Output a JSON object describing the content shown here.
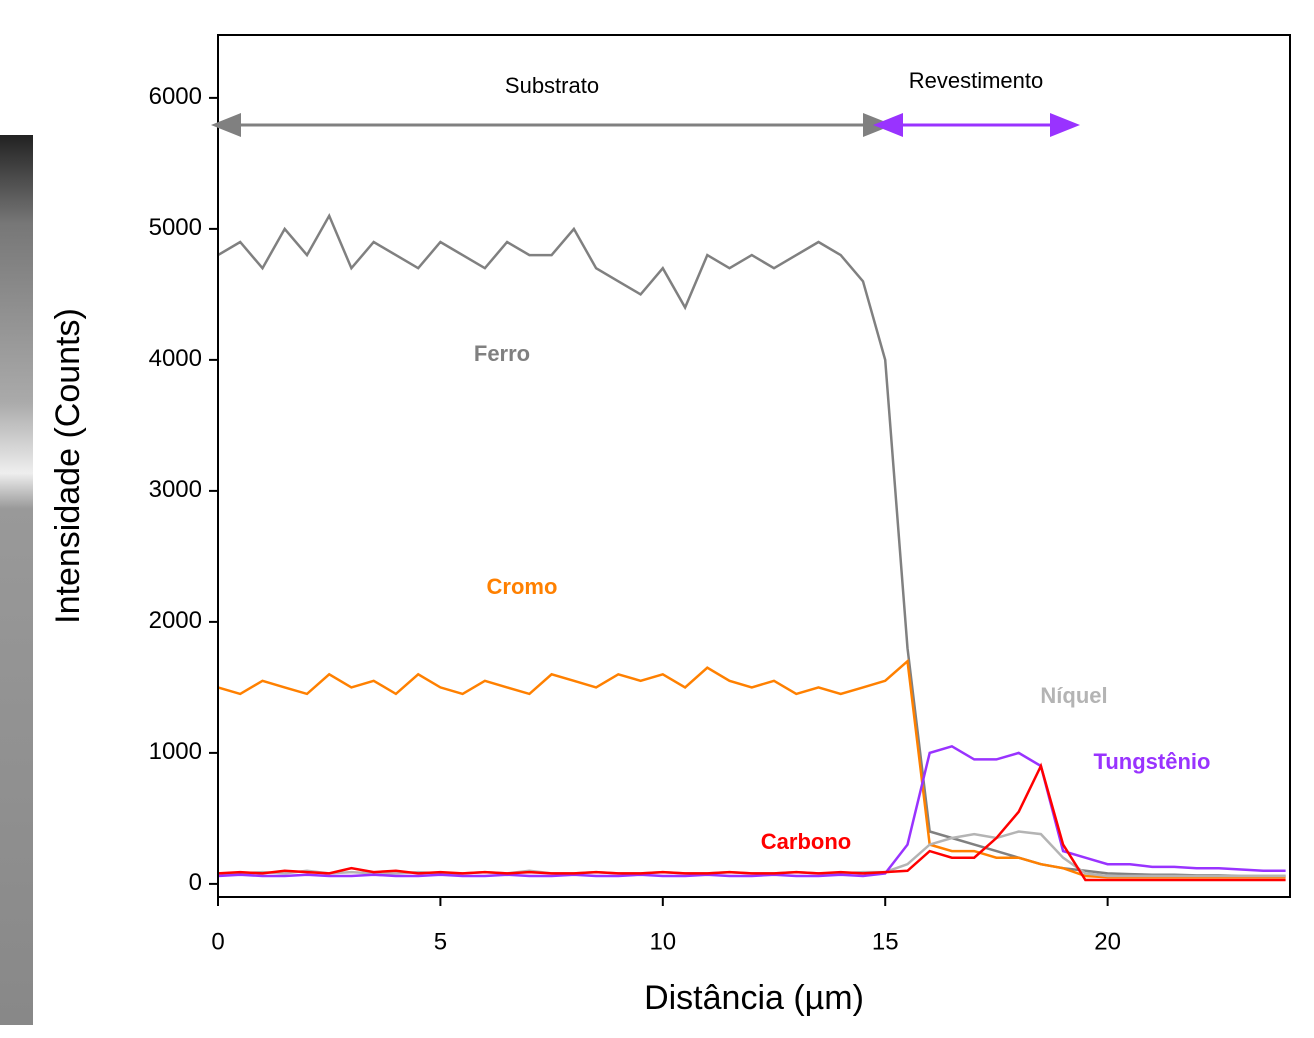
{
  "chart_data": {
    "type": "line",
    "x_label": "Distância (µm)",
    "y_label": "Intensidade (Counts)",
    "annotations": [
      "Substrato",
      "Revestimento"
    ],
    "x": [
      0,
      0.5,
      1,
      1.5,
      2,
      2.5,
      3,
      3.5,
      4,
      4.5,
      5,
      5.5,
      6,
      6.5,
      7,
      7.5,
      8,
      8.5,
      9,
      9.5,
      10,
      10.5,
      11,
      11.5,
      12,
      12.5,
      13,
      13.5,
      14,
      14.5,
      15,
      15.5,
      16,
      16.5,
      17,
      17.5,
      18,
      18.5,
      19,
      19.5,
      20,
      20.5,
      21,
      21.5,
      22,
      22.5,
      23,
      23.5,
      24
    ],
    "series": [
      {
        "name": "Ferro",
        "color": "#808080",
        "values": [
          4800,
          4900,
          4700,
          5000,
          4800,
          5100,
          4700,
          4900,
          4800,
          4700,
          4900,
          4800,
          4700,
          4900,
          4800,
          4800,
          5000,
          4700,
          4600,
          4500,
          4700,
          4400,
          4800,
          4700,
          4800,
          4700,
          4800,
          4900,
          4800,
          4600,
          4000,
          1800,
          400,
          350,
          300,
          250,
          200,
          150,
          120,
          100,
          80,
          75,
          70,
          70,
          65,
          65,
          60,
          60,
          60
        ]
      },
      {
        "name": "Cromo",
        "color": "#ff8000",
        "values": [
          1500,
          1450,
          1550,
          1500,
          1450,
          1600,
          1500,
          1550,
          1450,
          1600,
          1500,
          1450,
          1550,
          1500,
          1450,
          1600,
          1550,
          1500,
          1600,
          1550,
          1600,
          1500,
          1650,
          1550,
          1500,
          1550,
          1450,
          1500,
          1450,
          1500,
          1550,
          1700,
          300,
          250,
          250,
          200,
          200,
          150,
          120,
          60,
          50,
          50,
          50,
          50,
          50,
          50,
          50,
          50,
          50
        ]
      },
      {
        "name": "Níquel",
        "color": "#b4b4b4",
        "values": [
          80,
          80,
          90,
          80,
          100,
          80,
          90,
          80,
          80,
          90,
          80,
          80,
          90,
          80,
          100,
          80,
          80,
          90,
          80,
          80,
          90,
          80,
          80,
          90,
          80,
          80,
          90,
          80,
          80,
          90,
          90,
          150,
          300,
          350,
          380,
          350,
          400,
          380,
          200,
          80,
          60,
          60,
          60,
          60,
          60,
          60,
          60,
          60,
          60
        ]
      },
      {
        "name": "Tungstênio",
        "color": "#9933ff",
        "values": [
          60,
          70,
          60,
          60,
          70,
          60,
          60,
          70,
          60,
          60,
          70,
          60,
          60,
          70,
          60,
          60,
          70,
          60,
          60,
          70,
          60,
          60,
          70,
          60,
          60,
          70,
          60,
          60,
          70,
          60,
          80,
          300,
          1000,
          1050,
          950,
          950,
          1000,
          900,
          250,
          200,
          150,
          150,
          130,
          130,
          120,
          120,
          110,
          100,
          100
        ]
      },
      {
        "name": "Carbono",
        "color": "#ff0000",
        "values": [
          80,
          90,
          80,
          100,
          90,
          80,
          120,
          90,
          100,
          80,
          90,
          80,
          90,
          80,
          90,
          80,
          80,
          90,
          80,
          80,
          90,
          80,
          80,
          90,
          80,
          80,
          90,
          80,
          90,
          80,
          90,
          100,
          250,
          200,
          200,
          350,
          550,
          900,
          300,
          30,
          30,
          30,
          30,
          30,
          30,
          30,
          30,
          30,
          30
        ]
      }
    ],
    "xlim": [
      0,
      24.1
    ],
    "ylim": [
      -100,
      6480
    ],
    "xticks": [
      0,
      5,
      10,
      15,
      20
    ],
    "yticks": [
      0,
      1000,
      2000,
      3000,
      4000,
      5000,
      6000
    ]
  }
}
